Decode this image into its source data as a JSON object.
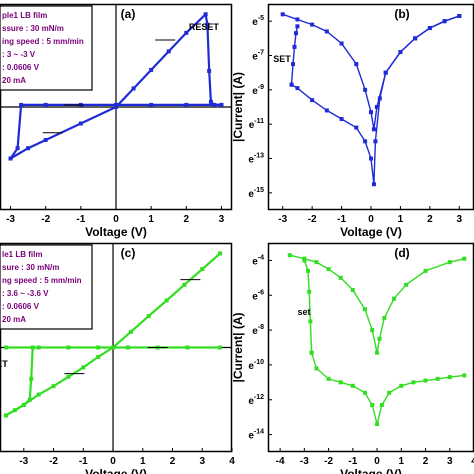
{
  "chart_data": [
    {
      "panel": "(a)",
      "type": "line",
      "xlabel": "Voltage (V)",
      "ylabel": "",
      "xlim": [
        -3.3,
        3.3
      ],
      "ylim": [
        -1,
        1
      ],
      "x_ticks": [
        "-3",
        "-2",
        "-1",
        "0",
        "1",
        "2",
        "3"
      ],
      "grid": false,
      "color": "#1f2bd4",
      "annotations": [
        "RESET"
      ],
      "info_box": [
        "ple1 LB film",
        "ssure : 30 mN/m",
        "ing speed : 5 mm/min",
        ": 3 ~ -3 V",
        ": 0.0606 V",
        "20 mA"
      ],
      "series": [
        {
          "values": [
            [
              0,
              0
            ],
            [
              0.5,
              0.18
            ],
            [
              1,
              0.36
            ],
            [
              1.5,
              0.54
            ],
            [
              2,
              0.72
            ],
            [
              2.55,
              0.9
            ],
            [
              2.6,
              0.8
            ],
            [
              2.65,
              0.35
            ],
            [
              2.7,
              0.05
            ],
            [
              2.8,
              0.02
            ],
            [
              3,
              0.02
            ]
          ]
        },
        {
          "values": [
            [
              3,
              0.02
            ],
            [
              2,
              0.02
            ],
            [
              1,
              0.02
            ],
            [
              0,
              0.02
            ],
            [
              -1,
              0.02
            ],
            [
              -2,
              0.02
            ],
            [
              -2.7,
              0.02
            ],
            [
              -2.8,
              -0.4
            ],
            [
              -3,
              -0.5
            ]
          ]
        },
        {
          "values": [
            [
              -3,
              -0.5
            ],
            [
              -2.5,
              -0.4
            ],
            [
              -2,
              -0.32
            ],
            [
              -1,
              -0.16
            ],
            [
              0,
              0
            ]
          ]
        }
      ]
    },
    {
      "panel": "(b)",
      "type": "line",
      "xlabel": "Voltage (V)",
      "ylabel": "|Current| (A)",
      "xlim": [
        -3.5,
        3.5
      ],
      "ylim": [
        -16,
        -4
      ],
      "x_ticks": [
        "-3",
        "-2",
        "-1",
        "0",
        "1",
        "2",
        "3"
      ],
      "y_ticks": [
        "e-5",
        "e-7",
        "e-9",
        "e-11",
        "e-13",
        "e-15"
      ],
      "grid": false,
      "color": "#1f2bd4",
      "annotations": [
        "SET"
      ],
      "series": [
        {
          "values": [
            [
              -3,
              -4.6
            ],
            [
              -2.5,
              -4.9
            ],
            [
              -2,
              -5.2
            ],
            [
              -1.5,
              -5.6
            ],
            [
              -1,
              -6.3
            ],
            [
              -0.5,
              -7.5
            ],
            [
              -0.2,
              -9
            ],
            [
              0,
              -10.3
            ],
            [
              0.1,
              -11.3
            ],
            [
              0.2,
              -10
            ],
            [
              0.5,
              -8
            ],
            [
              1,
              -6.8
            ],
            [
              1.5,
              -6
            ],
            [
              2,
              -5.4
            ],
            [
              2.5,
              -5
            ],
            [
              3,
              -4.7
            ]
          ]
        },
        {
          "values": [
            [
              3,
              -4.7
            ],
            [
              2.5,
              -5
            ],
            [
              2,
              -5.4
            ],
            [
              1.5,
              -6
            ],
            [
              1,
              -6.8
            ],
            [
              0.5,
              -8
            ],
            [
              0.3,
              -9.5
            ],
            [
              0.15,
              -12
            ],
            [
              0.1,
              -14.5
            ],
            [
              0,
              -13
            ],
            [
              -0.2,
              -12
            ],
            [
              -0.5,
              -11.2
            ],
            [
              -1,
              -10.7
            ],
            [
              -1.5,
              -10.2
            ],
            [
              -2,
              -9.6
            ],
            [
              -2.5,
              -8.9
            ],
            [
              -2.7,
              -8.7
            ]
          ]
        },
        {
          "values": [
            [
              -2.7,
              -8.7
            ],
            [
              -2.65,
              -7.5
            ],
            [
              -2.6,
              -6.5
            ],
            [
              -2.55,
              -5.7
            ],
            [
              -2.5,
              -5.3
            ]
          ]
        }
      ]
    },
    {
      "panel": "(c)",
      "type": "line",
      "xlabel": "Voltage (V)",
      "ylabel": "",
      "xlim": [
        -3.8,
        4
      ],
      "ylim": [
        -1,
        1
      ],
      "x_ticks": [
        "-3",
        "-2",
        "-1",
        "0",
        "1",
        "2",
        "3",
        "4"
      ],
      "grid": false,
      "color": "#33dd22",
      "annotations": [
        "ET"
      ],
      "info_box": [
        "le1 LB film",
        "sure : 30 mN/m",
        "ng speed : 5 mm/min",
        ": 3.6 ~ -3.6 V",
        ": 0.0606 V",
        "20 mA"
      ],
      "series": [
        {
          "values": [
            [
              0,
              0
            ],
            [
              0.6,
              0.15
            ],
            [
              1.2,
              0.3
            ],
            [
              1.8,
              0.45
            ],
            [
              2.4,
              0.6
            ],
            [
              3,
              0.75
            ],
            [
              3.6,
              0.9
            ]
          ]
        },
        {
          "values": [
            [
              3.6,
              0.0
            ],
            [
              2.5,
              0.0
            ],
            [
              1.5,
              0.0
            ],
            [
              0.5,
              0.0
            ],
            [
              -0.5,
              0.0
            ],
            [
              -1.5,
              0.0
            ],
            [
              -2.5,
              0.0
            ],
            [
              -3.6,
              0.0
            ]
          ]
        },
        {
          "values": [
            [
              -2.7,
              0.0
            ],
            [
              -2.75,
              -0.3
            ],
            [
              -2.8,
              -0.5
            ],
            [
              -3.0,
              -0.55
            ],
            [
              -3.3,
              -0.6
            ],
            [
              -3.6,
              -0.65
            ]
          ]
        },
        {
          "values": [
            [
              -3.6,
              -0.65
            ],
            [
              -3,
              -0.55
            ],
            [
              -2.5,
              -0.45
            ],
            [
              -2,
              -0.37
            ],
            [
              -1.5,
              -0.28
            ],
            [
              -1,
              -0.19
            ],
            [
              -0.5,
              -0.09
            ],
            [
              0,
              0
            ]
          ]
        }
      ]
    },
    {
      "panel": "(d)",
      "type": "line",
      "xlabel": "Voltage (V)",
      "ylabel": "|Current| (A)",
      "xlim": [
        -4.5,
        4
      ],
      "ylim": [
        -15,
        -3
      ],
      "x_ticks": [
        "-4",
        "-3",
        "-2",
        "-1",
        "0",
        "1",
        "2",
        "3",
        "4"
      ],
      "y_ticks": [
        "e-4",
        "e-6",
        "e-8",
        "e-10",
        "e-12",
        "e-14"
      ],
      "grid": false,
      "color": "#33dd22",
      "annotations": [
        "set"
      ],
      "series": [
        {
          "values": [
            [
              -3.6,
              -3.7
            ],
            [
              -3,
              -3.9
            ],
            [
              -2.5,
              -4.1
            ],
            [
              -2,
              -4.5
            ],
            [
              -1.5,
              -5
            ],
            [
              -1,
              -5.7
            ],
            [
              -0.5,
              -6.8
            ],
            [
              -0.2,
              -8
            ],
            [
              0,
              -9.3
            ],
            [
              0.1,
              -8.5
            ],
            [
              0.3,
              -7.3
            ],
            [
              0.7,
              -6.2
            ],
            [
              1.2,
              -5.4
            ],
            [
              2,
              -4.6
            ],
            [
              3,
              -4.1
            ],
            [
              3.6,
              -3.9
            ]
          ]
        },
        {
          "values": [
            [
              3.6,
              -10.6
            ],
            [
              3,
              -10.7
            ],
            [
              2.5,
              -10.8
            ],
            [
              2,
              -10.9
            ],
            [
              1.5,
              -11
            ],
            [
              1,
              -11.2
            ],
            [
              0.5,
              -11.6
            ],
            [
              0.2,
              -12.3
            ],
            [
              0,
              -13.4
            ],
            [
              -0.2,
              -12.3
            ],
            [
              -0.5,
              -11.6
            ],
            [
              -1,
              -11.2
            ],
            [
              -1.5,
              -11
            ],
            [
              -2,
              -10.8
            ],
            [
              -2.5,
              -10.2
            ],
            [
              -2.7,
              -9.3
            ]
          ]
        },
        {
          "values": [
            [
              -2.7,
              -9.3
            ],
            [
              -2.75,
              -7.5
            ],
            [
              -2.8,
              -5.8
            ],
            [
              -2.85,
              -4.6
            ],
            [
              -3,
              -4
            ]
          ]
        }
      ]
    }
  ]
}
